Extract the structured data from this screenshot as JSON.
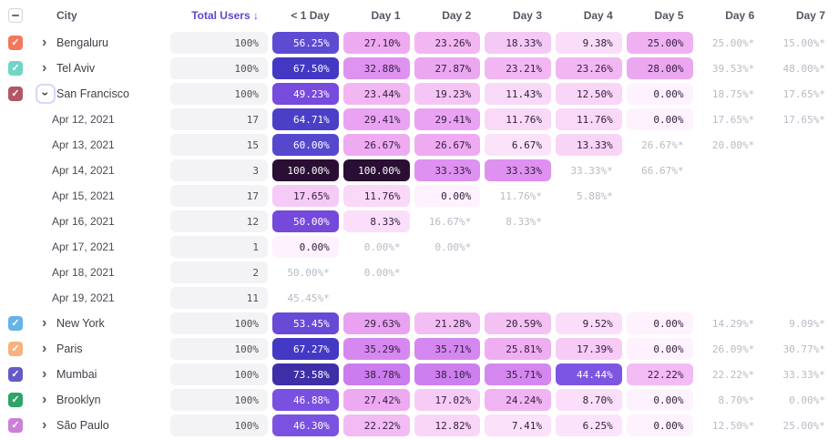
{
  "table": {
    "columns": [
      {
        "label": "City"
      },
      {
        "label": "Total Users ↓",
        "sorted": "desc"
      },
      {
        "label": "< 1 Day"
      },
      {
        "label": "Day 1"
      },
      {
        "label": "Day 2"
      },
      {
        "label": "Day 3"
      },
      {
        "label": "Day 4"
      },
      {
        "label": "Day 5"
      },
      {
        "label": "Day 6"
      },
      {
        "label": "Day 7"
      }
    ],
    "rows": [
      {
        "type": "city",
        "label": "Bengaluru",
        "checkbox_color": "#f4775a",
        "checked": true,
        "expanded": false,
        "total": "100%",
        "cells": [
          "56.25%",
          "27.10%",
          "23.26%",
          "18.33%",
          "9.38%",
          "25.00%",
          "25.00%*",
          "15.00%*"
        ]
      },
      {
        "type": "city",
        "label": "Tel Aviv",
        "checkbox_color": "#70d6c3",
        "checked": true,
        "expanded": false,
        "total": "100%",
        "cells": [
          "67.50%",
          "32.88%",
          "27.87%",
          "23.21%",
          "23.26%",
          "28.00%",
          "39.53%*",
          "48.00%*"
        ]
      },
      {
        "type": "city",
        "label": "San Francisco",
        "checkbox_color": "#b25766",
        "checked": true,
        "expanded": true,
        "total": "100%",
        "cells": [
          "49.23%",
          "23.44%",
          "19.23%",
          "11.43%",
          "12.50%",
          "0.00%",
          "18.75%*",
          "17.65%*"
        ]
      },
      {
        "type": "date",
        "label": "Apr 12, 2021",
        "total": "17",
        "cells": [
          "64.71%",
          "29.41%",
          "29.41%",
          "11.76%",
          "11.76%",
          "0.00%",
          "17.65%*",
          "17.65%*"
        ]
      },
      {
        "type": "date",
        "label": "Apr 13, 2021",
        "total": "15",
        "cells": [
          "60.00%",
          "26.67%",
          "26.67%",
          "6.67%",
          "13.33%",
          "26.67%*",
          "20.00%*",
          null
        ]
      },
      {
        "type": "date",
        "label": "Apr 14, 2021",
        "total": "3",
        "cells": [
          "100.00%",
          "100.00%",
          "33.33%",
          "33.33%",
          "33.33%*",
          "66.67%*",
          null,
          null
        ]
      },
      {
        "type": "date",
        "label": "Apr 15, 2021",
        "total": "17",
        "cells": [
          "17.65%",
          "11.76%",
          "0.00%",
          "11.76%*",
          "5.88%*",
          null,
          null,
          null
        ]
      },
      {
        "type": "date",
        "label": "Apr 16, 2021",
        "total": "12",
        "cells": [
          "50.00%",
          "8.33%",
          "16.67%*",
          "8.33%*",
          null,
          null,
          null,
          null
        ]
      },
      {
        "type": "date",
        "label": "Apr 17, 2021",
        "total": "1",
        "cells": [
          "0.00%",
          "0.00%*",
          "0.00%*",
          null,
          null,
          null,
          null,
          null
        ]
      },
      {
        "type": "date",
        "label": "Apr 18, 2021",
        "total": "2",
        "cells": [
          "50.00%*",
          "0.00%*",
          null,
          null,
          null,
          null,
          null,
          null
        ]
      },
      {
        "type": "date",
        "label": "Apr 19, 2021",
        "total": "11",
        "cells": [
          "45.45%*",
          null,
          null,
          null,
          null,
          null,
          null,
          null
        ]
      },
      {
        "type": "city",
        "label": "New York",
        "checkbox_color": "#65b3e8",
        "checked": true,
        "expanded": false,
        "total": "100%",
        "cells": [
          "53.45%",
          "29.63%",
          "21.28%",
          "20.59%",
          "9.52%",
          "0.00%",
          "14.29%*",
          "9.09%*"
        ]
      },
      {
        "type": "city",
        "label": "Paris",
        "checkbox_color": "#f7b27f",
        "checked": true,
        "expanded": false,
        "total": "100%",
        "cells": [
          "67.27%",
          "35.29%",
          "35.71%",
          "25.81%",
          "17.39%",
          "0.00%",
          "26.09%*",
          "30.77%*"
        ]
      },
      {
        "type": "city",
        "label": "Mumbai",
        "checkbox_color": "#655bc8",
        "checked": true,
        "expanded": false,
        "total": "100%",
        "cells": [
          "73.58%",
          "38.78%",
          "38.10%",
          "35.71%",
          "44.44%",
          "22.22%",
          "22.22%*",
          "33.33%*"
        ]
      },
      {
        "type": "city",
        "label": "Brooklyn",
        "checkbox_color": "#2fa467",
        "checked": true,
        "expanded": false,
        "total": "100%",
        "cells": [
          "46.88%",
          "27.42%",
          "17.02%",
          "24.24%",
          "8.70%",
          "0.00%",
          "8.70%*",
          "0.00%*"
        ]
      },
      {
        "type": "city",
        "label": "São Paulo",
        "checkbox_color": "#cc7fd6",
        "checked": true,
        "expanded": false,
        "total": "100%",
        "cells": [
          "46.30%",
          "22.22%",
          "12.82%",
          "7.41%",
          "6.25%",
          "0.00%",
          "12.50%*",
          "25.00%*"
        ]
      }
    ]
  },
  "colors": {
    "sort_accent": "#5a4ad4",
    "header_text": "#565663",
    "partial_text": "#b9bac4",
    "dark_cell_text": "#332040",
    "light_cell_text": "#ffffff",
    "white_text_threshold": 44,
    "total_pill_bg": "#f3f3f5",
    "scale_stops": [
      [
        0,
        "#fdf2fd"
      ],
      [
        8,
        "#fbe0fa"
      ],
      [
        14,
        "#f8d3f7"
      ],
      [
        19,
        "#f5c7f5"
      ],
      [
        23,
        "#f2b8f2"
      ],
      [
        27,
        "#eeaaf1"
      ],
      [
        31,
        "#e79ef2"
      ],
      [
        34,
        "#db8df1"
      ],
      [
        38,
        "#cd7eef"
      ],
      [
        43.9,
        "#c06fec"
      ],
      [
        44,
        "#7e56e4"
      ],
      [
        50,
        "#7549dc"
      ],
      [
        57,
        "#5a4cd2"
      ],
      [
        63,
        "#4f43cb"
      ],
      [
        68,
        "#4237c3"
      ],
      [
        75,
        "#3a2da0"
      ],
      [
        85,
        "#31205f"
      ],
      [
        100,
        "#2a0e33"
      ]
    ]
  }
}
